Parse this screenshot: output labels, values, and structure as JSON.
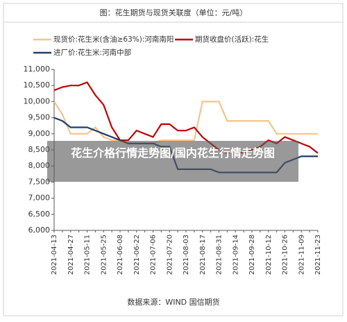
{
  "chart_data": {
    "type": "line",
    "title": "图：花生期货与现货关联度（单位：元/吨）",
    "source": "数据来源：WIND 国信期货",
    "overlay_caption": "花生介格行情走势图/国内花生行情走势图",
    "x": [
      "2021-04-13",
      "2021-04-20",
      "2021-04-27",
      "2021-05-04",
      "2021-05-11",
      "2021-05-18",
      "2021-05-25",
      "2021-06-01",
      "2021-06-08",
      "2021-06-15",
      "2021-06-22",
      "2021-06-29",
      "2021-07-06",
      "2021-07-13",
      "2021-07-20",
      "2021-07-27",
      "2021-08-03",
      "2021-08-10",
      "2021-08-17",
      "2021-08-24",
      "2021-08-31",
      "2021-09-07",
      "2021-09-14",
      "2021-09-21",
      "2021-09-28",
      "2021-10-05",
      "2021-10-12",
      "2021-10-19",
      "2021-10-26",
      "2021-11-02",
      "2021-11-09",
      "2021-11-16",
      "2021-11-23"
    ],
    "series": [
      {
        "name": "现货价:花生米(含油≥63%):河南南阳",
        "color": "#f5c48a",
        "values": [
          10000,
          9600,
          9000,
          9000,
          9000,
          9200,
          8900,
          8800,
          8800,
          8700,
          8700,
          8700,
          8700,
          8800,
          8800,
          8800,
          8800,
          8800,
          10000,
          10000,
          10000,
          9400,
          9400,
          9400,
          9400,
          9400,
          9400,
          9000,
          9000,
          9000,
          9000,
          9000,
          9000
        ]
      },
      {
        "name": "期货收盘价(活跃):花生",
        "color": "#c00000",
        "values": [
          10350,
          10450,
          10500,
          10500,
          10600,
          10200,
          9900,
          9200,
          8800,
          8800,
          9100,
          9000,
          8900,
          9300,
          9300,
          9100,
          9100,
          9200,
          8900,
          8700,
          8500,
          8400,
          8500,
          8400,
          8500,
          8600,
          8800,
          8700,
          8900,
          8800,
          8700,
          8600,
          8400
        ]
      },
      {
        "name": "进厂价:花生米:河南中部",
        "color": "#1f3c6e",
        "values": [
          9500,
          9400,
          9200,
          9200,
          9200,
          9100,
          9000,
          8900,
          8800,
          8700,
          8700,
          8700,
          8700,
          8600,
          8600,
          7900,
          7900,
          7900,
          7900,
          7900,
          7800,
          7800,
          7800,
          7800,
          7800,
          7800,
          7800,
          7800,
          8100,
          8200,
          8300,
          8300,
          8300
        ]
      }
    ],
    "ylim": [
      6000,
      11000
    ],
    "yticks": [
      {
        "value": 6000,
        "label": "6,000"
      },
      {
        "value": 6500,
        "label": "6,500"
      },
      {
        "value": 7000,
        "label": "7,000"
      },
      {
        "value": 7500,
        "label": "7,500"
      },
      {
        "value": 8000,
        "label": "8,000"
      },
      {
        "value": 8500,
        "label": "8,500"
      },
      {
        "value": 9000,
        "label": "9,000"
      },
      {
        "value": 9500,
        "label": "9,500"
      },
      {
        "value": 10000,
        "label": "10,000"
      },
      {
        "value": 10500,
        "label": "10,500"
      },
      {
        "value": 11000,
        "label": "11,000"
      }
    ]
  }
}
